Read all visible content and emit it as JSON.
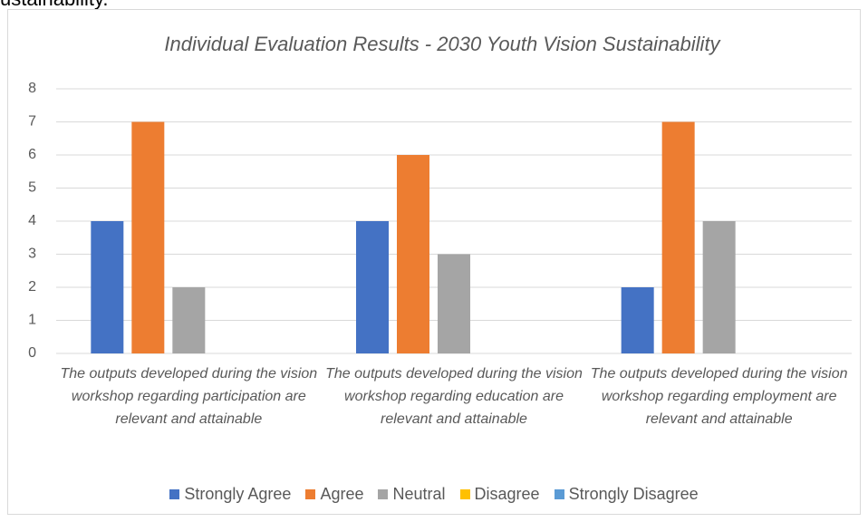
{
  "page_fragment": "ustainability.",
  "chart_data": {
    "type": "bar",
    "title": "Individual Evaluation Results - 2030 Youth Vision Sustainability",
    "categories": [
      "The outputs developed during the vision workshop regarding participation are relevant and attainable",
      "The outputs developed during the vision workshop regarding education are relevant and attainable",
      "The outputs developed during the vision workshop regarding employment are relevant and attainable"
    ],
    "series": [
      {
        "name": "Strongly Agree",
        "color": "#4472c4",
        "values": [
          4,
          4,
          2
        ]
      },
      {
        "name": "Agree",
        "color": "#ed7d31",
        "values": [
          7,
          6,
          7
        ]
      },
      {
        "name": "Neutral",
        "color": "#a5a5a5",
        "values": [
          2,
          3,
          4
        ]
      },
      {
        "name": "Disagree",
        "color": "#ffc000",
        "values": [
          0,
          0,
          0
        ]
      },
      {
        "name": "Strongly Disagree",
        "color": "#5b9bd5",
        "values": [
          0,
          0,
          0
        ]
      }
    ],
    "ylim": [
      0,
      8
    ],
    "yticks": [
      0,
      1,
      2,
      3,
      4,
      5,
      6,
      7,
      8
    ],
    "grid": true,
    "legend": "bottom"
  }
}
